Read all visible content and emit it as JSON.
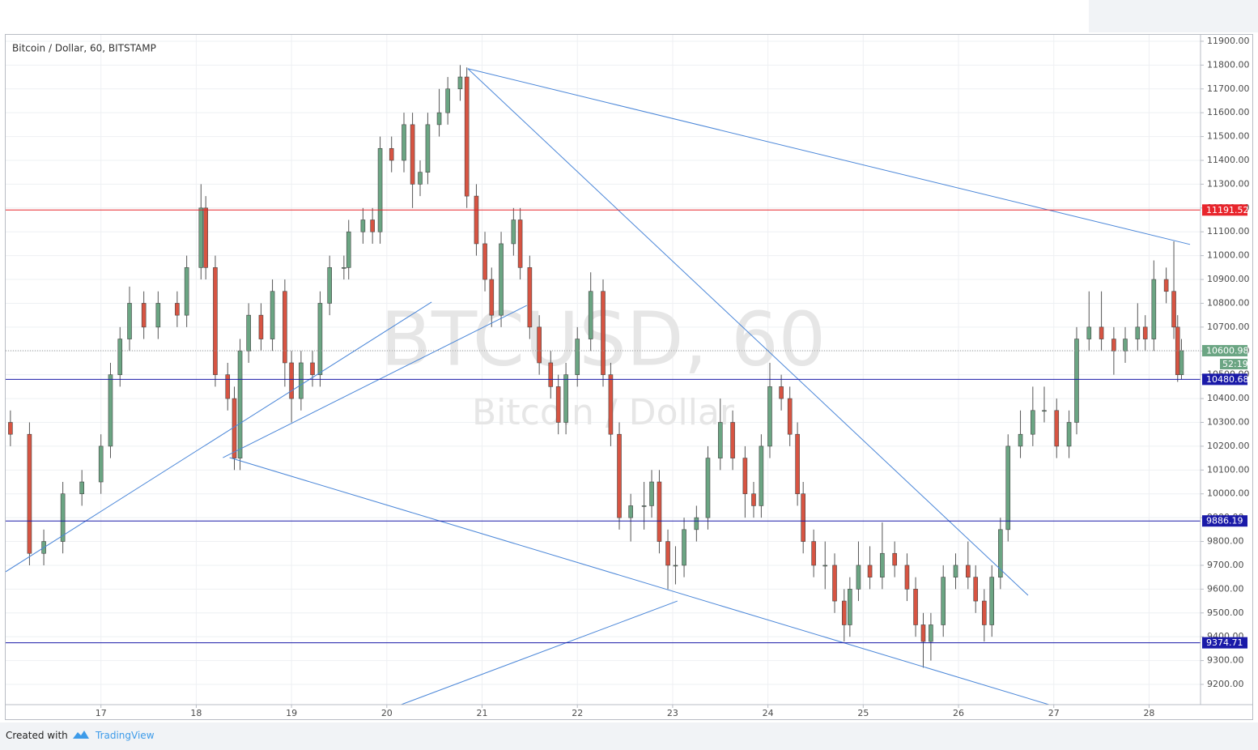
{
  "chart_data": {
    "type": "candlestick",
    "title": "Bitcoin / Dollar, 60, BITSTAMP",
    "watermark": "BTCUSD, 60",
    "watermark_subtitle": "Bitcoin / Dollar",
    "x": [
      16.05,
      16.25,
      16.4,
      16.6,
      16.8,
      17.0,
      17.1,
      17.2,
      17.3,
      17.45,
      17.6,
      17.8,
      17.9,
      18.05,
      18.1,
      18.2,
      18.33,
      18.4,
      18.46,
      18.55,
      18.68,
      18.8,
      18.93,
      19.0,
      19.1,
      19.22,
      19.3,
      19.4,
      19.55,
      19.6,
      19.75,
      19.85,
      19.93,
      20.05,
      20.18,
      20.27,
      20.35,
      20.43,
      20.55,
      20.64,
      20.77,
      20.84,
      20.94,
      21.03,
      21.1,
      21.2,
      21.33,
      21.4,
      21.5,
      21.6,
      21.72,
      21.8,
      21.88,
      22.0,
      22.14,
      22.27,
      22.35,
      22.44,
      22.56,
      22.7,
      22.78,
      22.86,
      22.95,
      23.03,
      23.12,
      23.25,
      23.37,
      23.5,
      23.63,
      23.76,
      23.85,
      23.93,
      24.02,
      24.14,
      24.23,
      24.31,
      24.37,
      24.48,
      24.6,
      24.7,
      24.8,
      24.86,
      24.95,
      25.07,
      25.2,
      25.33,
      25.46,
      25.55,
      25.63,
      25.71,
      25.84,
      25.97,
      26.1,
      26.18,
      26.27,
      26.35,
      26.44,
      26.52,
      26.65,
      26.78,
      26.9,
      27.03,
      27.16,
      27.24,
      27.37,
      27.5,
      27.63,
      27.75,
      27.88,
      27.96,
      28.05,
      28.18,
      28.26,
      28.3,
      28.34
    ],
    "open": [
      10300,
      10250,
      9750,
      9800,
      10000,
      10050,
      10200,
      10500,
      10650,
      10800,
      10700,
      10800,
      10750,
      10950,
      11200,
      10950,
      10500,
      10400,
      10150,
      10600,
      10750,
      10650,
      10850,
      10550,
      10400,
      10550,
      10500,
      10800,
      10950,
      10950,
      11100,
      11150,
      11100,
      11450,
      11400,
      11550,
      11300,
      11350,
      11550,
      11600,
      11700,
      11750,
      11250,
      11050,
      10900,
      10750,
      11050,
      11150,
      10950,
      10700,
      10550,
      10450,
      10300,
      10500,
      10650,
      10850,
      10500,
      10250,
      9900,
      9950,
      9950,
      10050,
      9800,
      9700,
      9700,
      9850,
      9900,
      10150,
      10300,
      10150,
      10000,
      9950,
      10200,
      10450,
      10400,
      10250,
      10000,
      9800,
      9700,
      9700,
      9550,
      9450,
      9600,
      9700,
      9650,
      9750,
      9700,
      9600,
      9450,
      9380,
      9450,
      9650,
      9700,
      9650,
      9550,
      9450,
      9650,
      9850,
      10200,
      10250,
      10350,
      10350,
      10200,
      10300,
      10650,
      10700,
      10650,
      10600,
      10650,
      10700,
      10650,
      10900,
      10850,
      10700,
      10500
    ],
    "high": [
      10350,
      10300,
      9850,
      10050,
      10100,
      10250,
      10550,
      10700,
      10870,
      10850,
      10850,
      10850,
      11000,
      11300,
      11250,
      11000,
      10550,
      10450,
      10650,
      10800,
      10800,
      10900,
      10900,
      10600,
      10600,
      10600,
      10850,
      11000,
      11000,
      11150,
      11200,
      11200,
      11500,
      11500,
      11600,
      11600,
      11400,
      11600,
      11700,
      11750,
      11800,
      11790,
      11300,
      11100,
      10950,
      11100,
      11200,
      11200,
      11000,
      10750,
      10600,
      10500,
      10550,
      10700,
      10930,
      10900,
      10550,
      10300,
      10000,
      10050,
      10100,
      10100,
      9850,
      9780,
      9900,
      9950,
      10200,
      10400,
      10350,
      10200,
      10050,
      10250,
      10550,
      10500,
      10450,
      10300,
      10050,
      9850,
      9800,
      9750,
      9600,
      9650,
      9800,
      9780,
      9880,
      9800,
      9750,
      9650,
      9500,
      9500,
      9700,
      9750,
      9800,
      9700,
      9600,
      9700,
      9900,
      10250,
      10350,
      10450,
      10450,
      10400,
      10350,
      10700,
      10850,
      10850,
      10700,
      10700,
      10800,
      10750,
      10980,
      10950,
      11060,
      10750,
      10650
    ],
    "low": [
      10200,
      9700,
      9700,
      9750,
      9950,
      10000,
      10150,
      10450,
      10600,
      10650,
      10650,
      10700,
      10700,
      10900,
      10900,
      10450,
      10350,
      10100,
      10100,
      10550,
      10600,
      10600,
      10450,
      10300,
      10350,
      10450,
      10450,
      10750,
      10900,
      10900,
      11050,
      11050,
      11050,
      11350,
      11350,
      11200,
      11250,
      11300,
      11500,
      11550,
      11650,
      11200,
      11000,
      10850,
      10700,
      10700,
      11000,
      10900,
      10650,
      10500,
      10400,
      10250,
      10250,
      10450,
      10600,
      10450,
      10200,
      9850,
      9800,
      9850,
      9900,
      9750,
      9600,
      9620,
      9650,
      9800,
      9850,
      10100,
      10100,
      9900,
      9900,
      9900,
      10150,
      10350,
      10200,
      9950,
      9750,
      9650,
      9600,
      9500,
      9380,
      9400,
      9550,
      9600,
      9600,
      9650,
      9550,
      9400,
      9270,
      9300,
      9400,
      9600,
      9600,
      9500,
      9380,
      9400,
      9600,
      9800,
      10150,
      10200,
      10300,
      10150,
      10150,
      10250,
      10600,
      10600,
      10500,
      10550,
      10600,
      10600,
      10600,
      10800,
      10650,
      10470,
      10480
    ],
    "close": [
      10250,
      9750,
      9800,
      10000,
      10050,
      10200,
      10500,
      10650,
      10800,
      10700,
      10800,
      10750,
      10950,
      11200,
      10950,
      10500,
      10400,
      10150,
      10600,
      10750,
      10650,
      10850,
      10550,
      10400,
      10550,
      10500,
      10800,
      10950,
      10950,
      11100,
      11150,
      11100,
      11450,
      11400,
      11550,
      11300,
      11350,
      11550,
      11600,
      11700,
      11750,
      11250,
      11050,
      10900,
      10750,
      11050,
      11150,
      10950,
      10700,
      10550,
      10450,
      10300,
      10500,
      10650,
      10850,
      10500,
      10250,
      9900,
      9950,
      9950,
      10050,
      9800,
      9700,
      9700,
      9850,
      9900,
      10150,
      10300,
      10150,
      10000,
      9950,
      10200,
      10450,
      10400,
      10250,
      10000,
      9800,
      9700,
      9700,
      9550,
      9450,
      9600,
      9700,
      9650,
      9750,
      9700,
      9600,
      9450,
      9380,
      9450,
      9650,
      9700,
      9650,
      9550,
      9450,
      9650,
      9850,
      10200,
      10250,
      10350,
      10350,
      10200,
      10300,
      10650,
      10700,
      10650,
      10600,
      10650,
      10700,
      10650,
      10900,
      10850,
      10700,
      10500,
      10600.98
    ],
    "up_color": "#6ba583",
    "down_color": "#d75442",
    "xlim": [
      16,
      28.54
    ],
    "xticks": [
      17,
      18,
      19,
      20,
      21,
      22,
      23,
      24,
      25,
      26,
      27,
      28
    ],
    "ylim": [
      9115,
      11927
    ],
    "yticks": [
      {
        "value": 9200,
        "label": "9200.00"
      },
      {
        "value": 9300,
        "label": "9300.00"
      },
      {
        "value": 9400,
        "label": "9400.00"
      },
      {
        "value": 9500,
        "label": "9500.00"
      },
      {
        "value": 9600,
        "label": "9600.00"
      },
      {
        "value": 9700,
        "label": "9700.00"
      },
      {
        "value": 9800,
        "label": "9800.00"
      },
      {
        "value": 9900,
        "label": "9900.00"
      },
      {
        "value": 10000,
        "label": "10000.00"
      },
      {
        "value": 10100,
        "label": "10100.00"
      },
      {
        "value": 10200,
        "label": "10200.00"
      },
      {
        "value": 10300,
        "label": "10300.00"
      },
      {
        "value": 10400,
        "label": "10400.00"
      },
      {
        "value": 10500,
        "label": "10500.00"
      },
      {
        "value": 10600,
        "label": "10600.00"
      },
      {
        "value": 10700,
        "label": "10700.00"
      },
      {
        "value": 10800,
        "label": "10800.00"
      },
      {
        "value": 10900,
        "label": "10900.00"
      },
      {
        "value": 11000,
        "label": "11000.00"
      },
      {
        "value": 11100,
        "label": "11100.00"
      },
      {
        "value": 11200,
        "label": "11200.00"
      },
      {
        "value": 11300,
        "label": "11300.00"
      },
      {
        "value": 11400,
        "label": "11400.00"
      },
      {
        "value": 11500,
        "label": "11500.00"
      },
      {
        "value": 11600,
        "label": "11600.00"
      },
      {
        "value": 11700,
        "label": "11700.00"
      },
      {
        "value": 11800,
        "label": "11800.00"
      },
      {
        "value": 11900,
        "label": "11900.00"
      }
    ],
    "grid": true,
    "levels": [
      {
        "value": 11191.52,
        "color": "#e8252c"
      },
      {
        "value": 10480.68,
        "color": "#1a1aa8"
      },
      {
        "value": 9886.19,
        "color": "#1a1aa8"
      },
      {
        "value": 9374.71,
        "color": "#1a1aa8"
      }
    ],
    "last_price": {
      "value": 10600.98,
      "countdown": "52:19",
      "color": "#6ba583"
    },
    "trend_color": "#4a86d8",
    "trend_lines": [
      {
        "x": [
          20.85,
          28.43
        ],
        "y": [
          11785,
          11047
        ]
      },
      {
        "x": [
          20.85,
          26.73
        ],
        "y": [
          11785,
          9574
        ]
      },
      {
        "x": [
          16.0,
          20.47
        ],
        "y": [
          9673,
          10805
        ]
      },
      {
        "x": [
          18.28,
          21.47
        ],
        "y": [
          10152,
          10791
        ]
      },
      {
        "x": [
          18.35,
          26.95
        ],
        "y": [
          10152,
          9115
        ]
      },
      {
        "x": [
          20.15,
          23.05
        ],
        "y": [
          9115,
          9550
        ]
      }
    ]
  },
  "footer": {
    "text": "Created with",
    "brand": "TradingView"
  }
}
